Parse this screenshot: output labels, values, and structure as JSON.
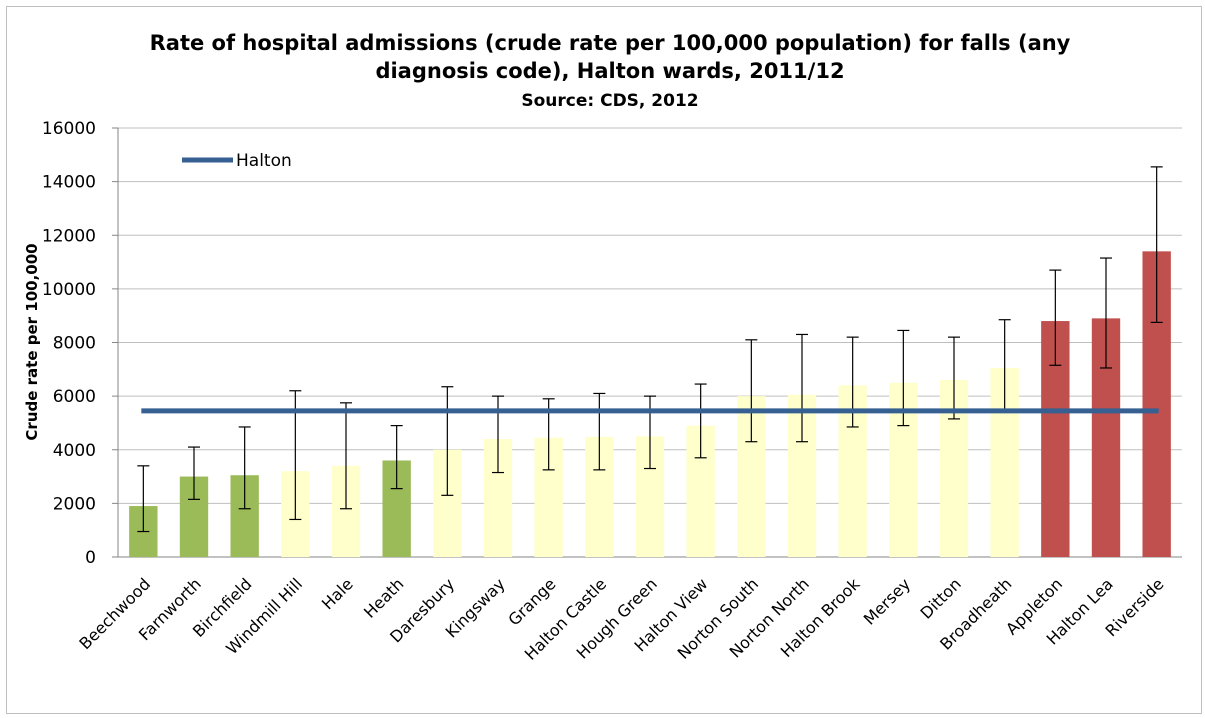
{
  "chart_data": {
    "type": "bar",
    "title": "Rate of hospital admissions (crude rate per 100,000 population) for falls (any diagnosis code), Halton wards, 2011/12",
    "title_lines": [
      "Rate of hospital admissions (crude rate per 100,000 population) for falls (any",
      "diagnosis code), Halton wards, 2011/12"
    ],
    "subtitle": "Source: CDS, 2012",
    "ylabel": "Crude rate per 100,000",
    "xlabel": "",
    "ylim": [
      0,
      16000
    ],
    "yticks": [
      0,
      2000,
      4000,
      6000,
      8000,
      10000,
      12000,
      14000,
      16000
    ],
    "grid": true,
    "legend": {
      "placement": "top-left",
      "entries": [
        "Halton"
      ]
    },
    "categories": [
      "Beechwood",
      "Farnworth",
      "Birchfield",
      "Windmill Hill",
      "Hale",
      "Heath",
      "Daresbury",
      "Kingsway",
      "Grange",
      "Halton Castle",
      "Hough Green",
      "Halton View",
      "Norton South",
      "Norton North",
      "Halton Brook",
      "Mersey",
      "Ditton",
      "Broadheath",
      "Appleton",
      "Halton Lea",
      "Riverside"
    ],
    "values": [
      1900,
      3000,
      3050,
      3200,
      3400,
      3600,
      4000,
      4400,
      4450,
      4480,
      4500,
      4900,
      6000,
      6050,
      6400,
      6500,
      6600,
      7050,
      8800,
      8900,
      11400
    ],
    "error_low": [
      950,
      2150,
      1800,
      1400,
      1800,
      2550,
      2300,
      3150,
      3250,
      3250,
      3300,
      3700,
      4300,
      4300,
      4850,
      4900,
      5150,
      5500,
      7150,
      7050,
      8750
    ],
    "error_high": [
      3400,
      4100,
      4850,
      6200,
      5750,
      4900,
      6350,
      6000,
      5900,
      6100,
      6000,
      6450,
      8100,
      8300,
      8200,
      8450,
      8200,
      8850,
      10700,
      11150,
      14550
    ],
    "bar_groups": [
      "green",
      "green",
      "green",
      "yellow",
      "yellow",
      "green",
      "yellow",
      "yellow",
      "yellow",
      "yellow",
      "yellow",
      "yellow",
      "yellow",
      "yellow",
      "yellow",
      "yellow",
      "yellow",
      "yellow",
      "red",
      "red",
      "red"
    ],
    "colors": {
      "green": "#9bbb59",
      "yellow": "#ffffcc",
      "red": "#c0504d",
      "reference_line": "#376092",
      "grid": "#bfbfbf"
    },
    "reference_line": {
      "name": "Halton",
      "value": 5450
    }
  }
}
